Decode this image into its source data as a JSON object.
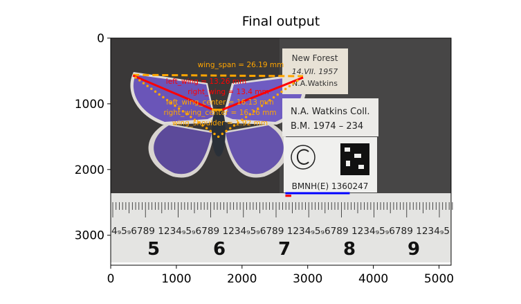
{
  "chart_data": {
    "type": "image",
    "title": "Final output",
    "xlim": [
      0,
      5184
    ],
    "ylim": [
      3456,
      0
    ],
    "xticks": [
      0,
      1000,
      2000,
      3000,
      4000,
      5000
    ],
    "yticks": [
      0,
      1000,
      2000,
      3000
    ],
    "grid": false,
    "image_text": {
      "label1": [
        "New Forest",
        "14.VII. 1957",
        "N.A.Watkins"
      ],
      "label2": [
        "N.A. Watkins Coll.",
        "B.M. 1974 – 234"
      ],
      "label3": "BMNH(E) 1360247",
      "ruler_numbers": [
        "5",
        "6",
        "7",
        "8",
        "9"
      ],
      "ruler_small": "4₉5₉6789 1234₉5₉6789 1234₉5₉6789 1234₉5₉6789 1234₉5₉6789 1234₉5"
    },
    "annotations": [
      {
        "name": "wing_span",
        "text": "wing_span = 26.19 mm",
        "color": "#ffa500",
        "style": "dashed",
        "points": [
          [
            340,
            560
          ],
          [
            2930,
            580
          ]
        ],
        "label_at": [
          2050,
          440
        ]
      },
      {
        "name": "left_wing",
        "text": "left_wing = 13.26 mm",
        "color": "#ff0000",
        "style": "solid",
        "points": [
          [
            340,
            570
          ],
          [
            1560,
            1090
          ]
        ],
        "label_at": [
          1610,
          705
        ]
      },
      {
        "name": "right_wing",
        "text": "right_wing = 13.4 mm",
        "color": "#ff0000",
        "style": "solid",
        "points": [
          [
            1700,
            1090
          ],
          [
            2930,
            600
          ]
        ],
        "label_at": [
          3260,
          810
        ]
      },
      {
        "name": "left_wing_center",
        "text": "left_wing_center = 16.13 mm",
        "color": "#ffa500",
        "style": "dotted",
        "points": [
          [
            380,
            600
          ],
          [
            1640,
            1500
          ]
        ],
        "label_at": [
          2000,
          905
        ]
      },
      {
        "name": "right_wing_center",
        "text": "right_wing_center = 16.16 mm",
        "color": "#ffa500",
        "style": "dotted",
        "points": [
          [
            1640,
            1500
          ],
          [
            2880,
            620
          ]
        ],
        "label_at": [
          3495,
          1050
        ]
      },
      {
        "name": "wing_shoulder",
        "text": "wing_shoulder = 1.92 mm",
        "color": "#ffa500",
        "style": "solid",
        "points": [
          [
            1540,
            1090
          ],
          [
            1700,
            1090
          ]
        ],
        "label_at": [
          2680,
          1075
        ]
      },
      {
        "name": "scale_bar",
        "text": "",
        "color": "#0000ff",
        "style": "solid",
        "points": [
          [
            2660,
            2360
          ],
          [
            3640,
            2360
          ]
        ]
      },
      {
        "name": "scale_marker",
        "text": "",
        "color": "#ff0000",
        "style": "solid",
        "points": [
          [
            2660,
            2400
          ],
          [
            2750,
            2400
          ]
        ]
      }
    ]
  }
}
